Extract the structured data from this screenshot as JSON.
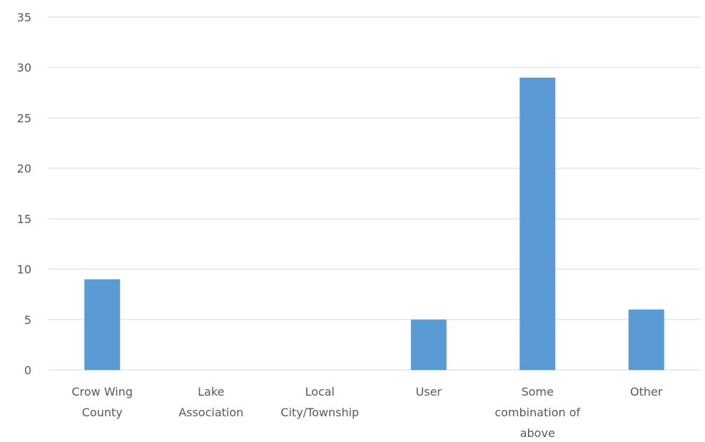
{
  "chart_data": {
    "type": "bar",
    "title": "",
    "xlabel": "",
    "ylabel": "",
    "categories": [
      [
        "Crow Wing",
        "County"
      ],
      [
        "Lake",
        "Association"
      ],
      [
        "Local",
        "City/Township"
      ],
      [
        "User"
      ],
      [
        "Some",
        "combination of",
        "above"
      ],
      [
        "Other"
      ]
    ],
    "values": [
      9,
      0,
      0,
      5,
      29,
      6
    ],
    "ylim": [
      0,
      35
    ],
    "yticks": [
      "0",
      "5",
      "10",
      "15",
      "20",
      "25",
      "30",
      "35"
    ],
    "grid": true,
    "legend": "none",
    "bar_color": "#5b9bd5"
  }
}
